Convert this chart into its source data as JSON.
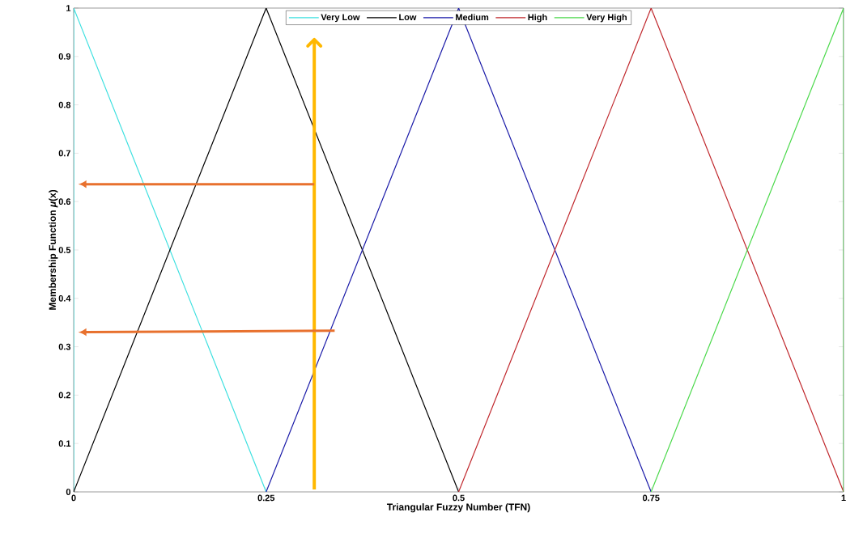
{
  "chart_data": {
    "type": "line",
    "xlabel": "Triangular Fuzzy Number (TFN)",
    "ylabel": "Membership Function *μ*(x)",
    "series": [
      {
        "name": "Very Low",
        "color": "#3ee0e0",
        "x": [
          0,
          0,
          0.25
        ],
        "values": [
          0,
          1,
          0
        ]
      },
      {
        "name": "Low",
        "color": "#000000",
        "x": [
          0,
          0.25,
          0.5
        ],
        "values": [
          0,
          1,
          0
        ]
      },
      {
        "name": "Medium",
        "color": "#1a1aa8",
        "x": [
          0.25,
          0.5,
          0.75
        ],
        "values": [
          0,
          1,
          0
        ]
      },
      {
        "name": "High",
        "color": "#c0282d",
        "x": [
          0.5,
          0.75,
          1
        ],
        "values": [
          0,
          1,
          0
        ]
      },
      {
        "name": "Very High",
        "color": "#4cd94c",
        "x": [
          0.75,
          1,
          1
        ],
        "values": [
          0,
          1,
          0
        ]
      }
    ],
    "xlim": [
      0,
      1
    ],
    "xticks": [
      0,
      0.25,
      0.5,
      0.75,
      1
    ],
    "ylim": [
      0,
      1
    ],
    "yticks": [
      0,
      0.1,
      0.2,
      0.3,
      0.4,
      0.5,
      0.6,
      0.7,
      0.8,
      0.9,
      1
    ],
    "ref_lines": [
      {
        "axis": "x",
        "value": 0.3125,
        "color": "#ffb800"
      }
    ],
    "legend": "top",
    "grid": false,
    "line_style": "solid"
  }
}
